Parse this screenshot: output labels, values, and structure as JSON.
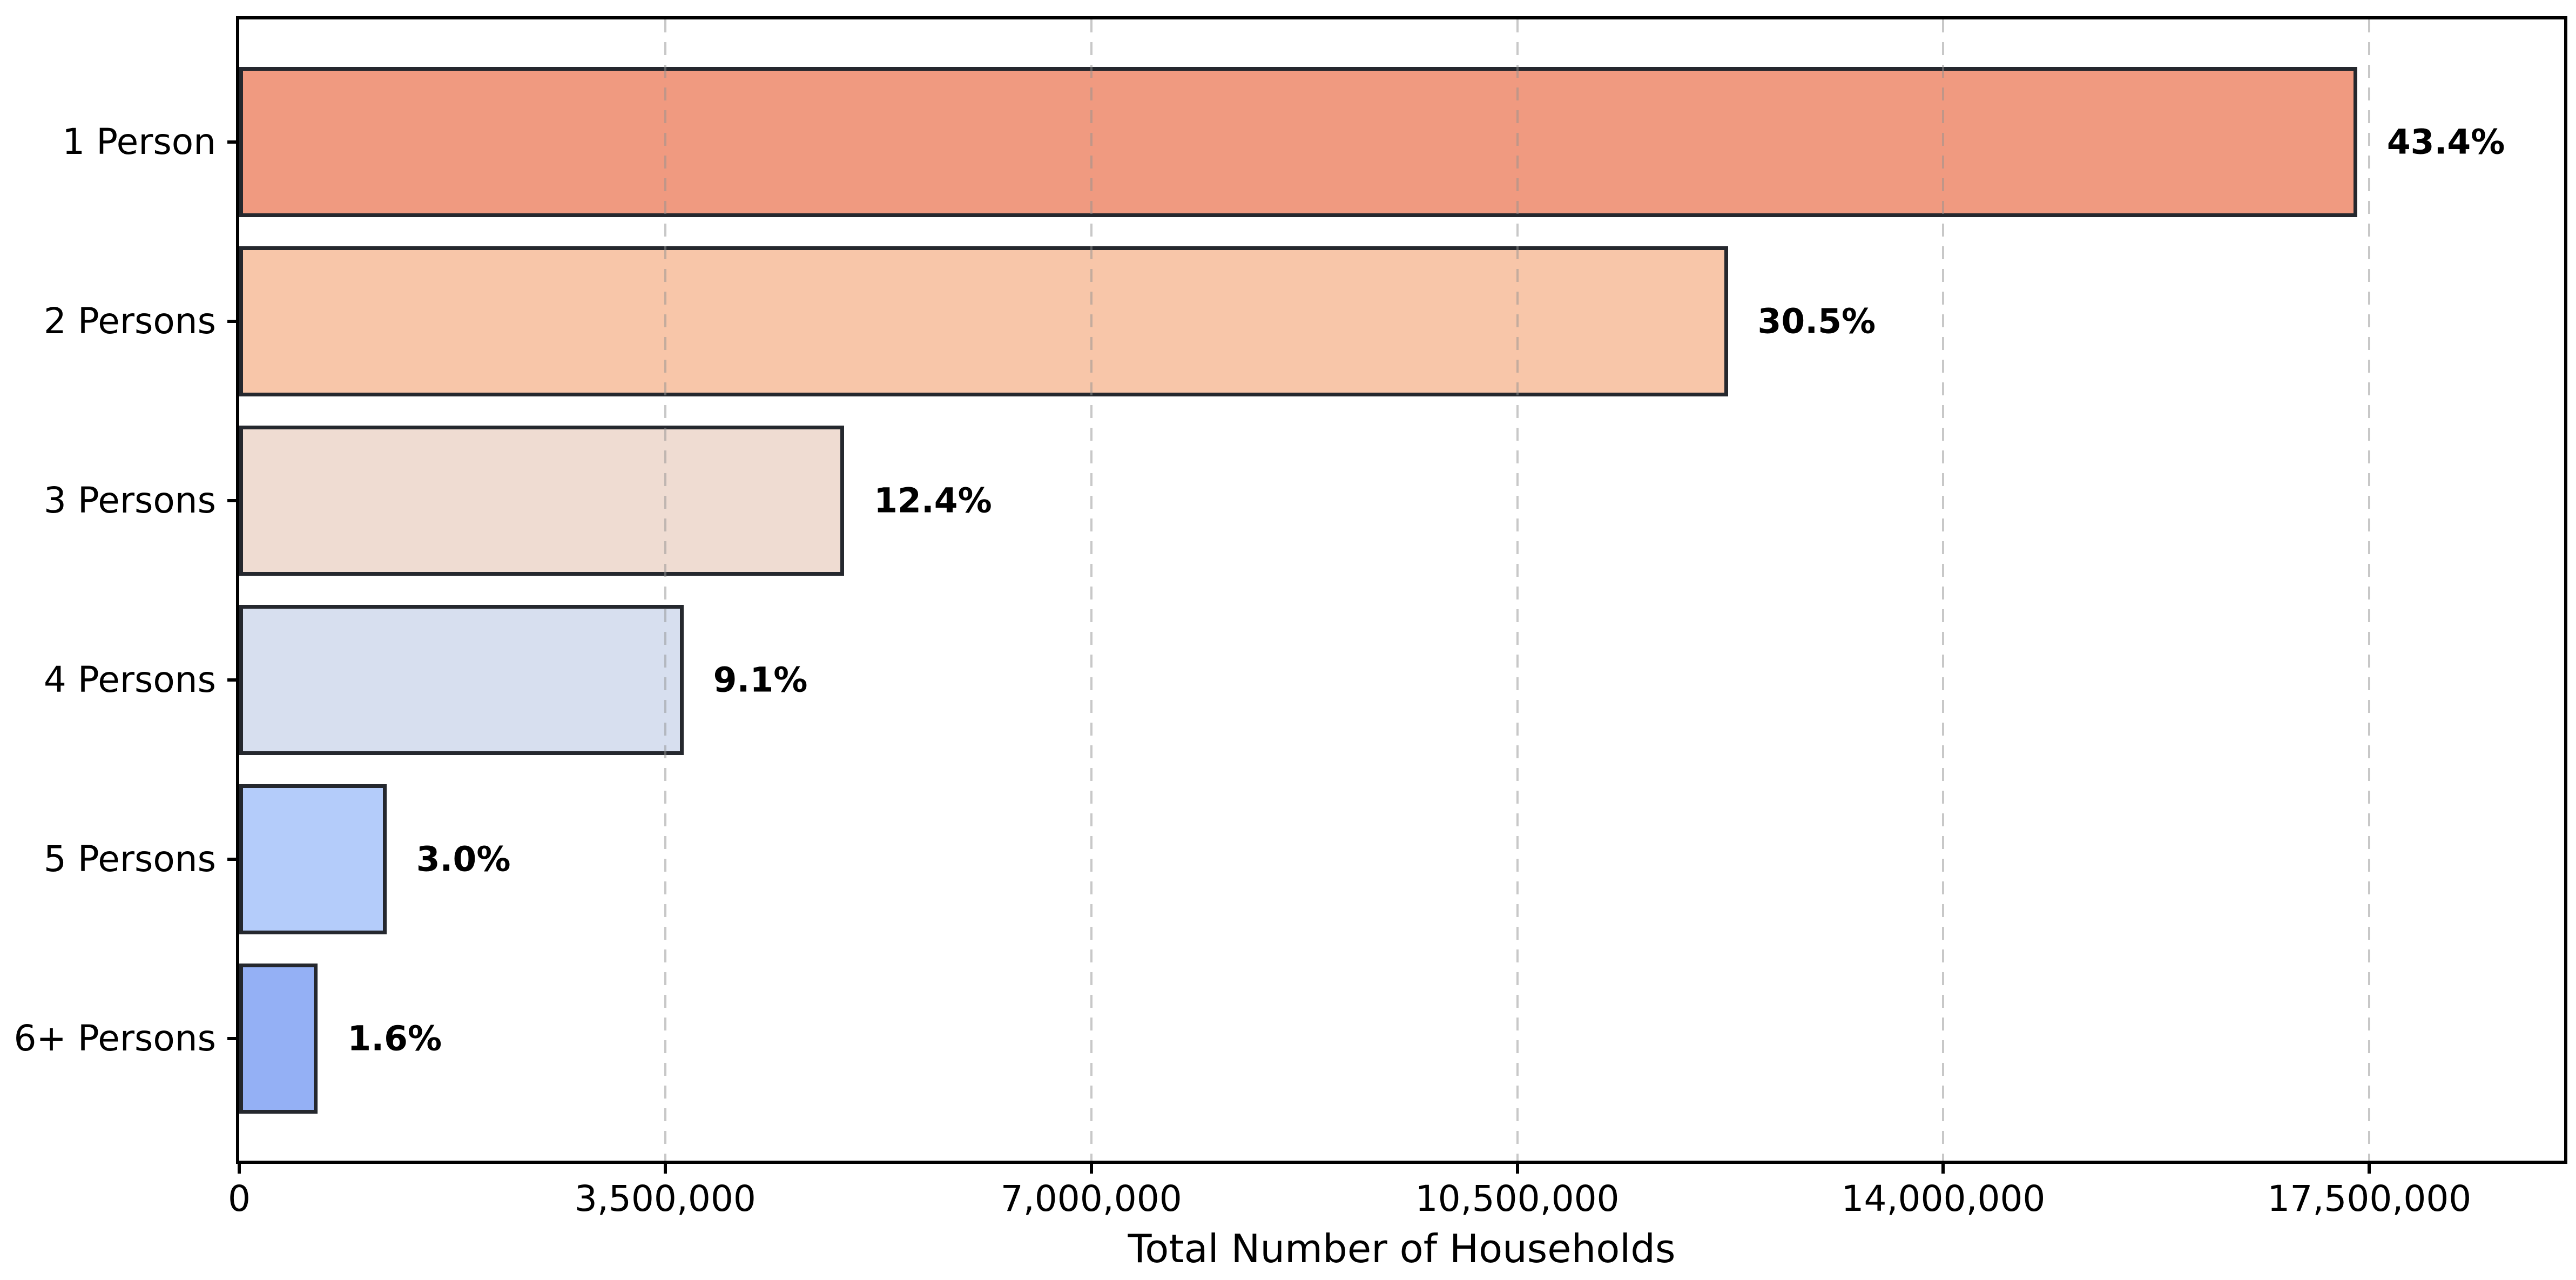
{
  "chart_data": {
    "type": "bar",
    "orientation": "horizontal",
    "title": "",
    "xlabel": "Total Number of Households",
    "ylabel": "",
    "categories": [
      "1 Person",
      "2 Persons",
      "3 Persons",
      "4 Persons",
      "5 Persons",
      "6+ Persons"
    ],
    "values": [
      17400000,
      12230000,
      4970000,
      3650000,
      1210000,
      645000
    ],
    "bar_labels": [
      "43.4%",
      "30.5%",
      "12.4%",
      "9.1%",
      "3.0%",
      "1.6%"
    ],
    "bar_colors": [
      "#F09A80",
      "#F8C6A9",
      "#EFDCD2",
      "#D7DFEF",
      "#B4CCFA",
      "#94B0F5"
    ],
    "bar_edge_color": "#25282E",
    "xlim": [
      0,
      19100000
    ],
    "x_ticks": [
      {
        "value": 0,
        "label": "0"
      },
      {
        "value": 3500000,
        "label": "3,500,000"
      },
      {
        "value": 7000000,
        "label": "7,000,000"
      },
      {
        "value": 10500000,
        "label": "10,500,000"
      },
      {
        "value": 14000000,
        "label": "14,000,000"
      },
      {
        "value": 17500000,
        "label": "17,500,000"
      }
    ],
    "grid": {
      "axis": "x",
      "style": "dashed",
      "color": "#C9C9C9",
      "over_bars": true
    },
    "legend": null,
    "spine_color": "#000000",
    "text_color": "#000000",
    "background": "#FFFFFF"
  }
}
